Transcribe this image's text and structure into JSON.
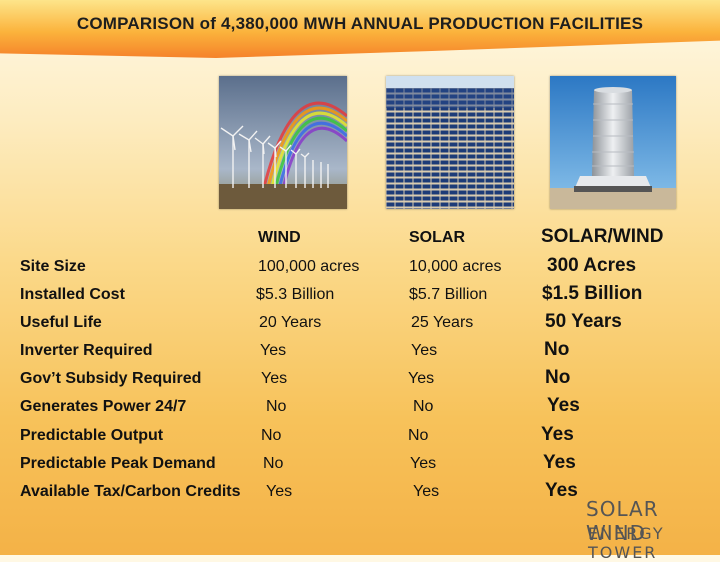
{
  "title": "COMPARISON of 4,380,000 MWH ANNUAL PRODUCTION FACILITIES",
  "columns": {
    "wind": "WIND",
    "solar": "SOLAR",
    "solar_wind": "SOLAR/WIND"
  },
  "rows": [
    {
      "label": "Site Size",
      "wind": "100,000 acres",
      "solar": "10,000 acres",
      "solar_wind": "300 Acres"
    },
    {
      "label": "Installed Cost",
      "wind": "$5.3 Billion",
      "solar": "$5.7 Billion",
      "solar_wind": "$1.5 Billion"
    },
    {
      "label": "Useful Life",
      "wind": "20 Years",
      "solar": "25 Years",
      "solar_wind": "50 Years"
    },
    {
      "label": "Inverter Required",
      "wind": "Yes",
      "solar": "Yes",
      "solar_wind": "No"
    },
    {
      "label": "Gov’t Subsidy Required",
      "wind": "Yes",
      "solar": "Yes",
      "solar_wind": "No"
    },
    {
      "label": "Generates Power  24/7",
      "wind": "No",
      "solar": "No",
      "solar_wind": "Yes"
    },
    {
      "label": "Predictable Output",
      "wind": "No",
      "solar": "No",
      "solar_wind": "Yes"
    },
    {
      "label": "Predictable Peak Demand",
      "wind": "No",
      "solar": "Yes",
      "solar_wind": "Yes"
    },
    {
      "label": "Available Tax/Carbon Credits",
      "wind": "Yes",
      "solar": "Yes",
      "solar_wind": "Yes"
    }
  ],
  "logo": {
    "line1": "SOLAR WIND",
    "line2": "ENERGY TOWER"
  },
  "colors": {
    "band_top": "#fde58a",
    "band_bottom": "#f5822a",
    "text": "#111111",
    "logo": "#555555"
  },
  "images": {
    "wind": "wind-turbines-rainbow",
    "solar": "solar-panel-field",
    "solar_wind": "energy-tower"
  }
}
